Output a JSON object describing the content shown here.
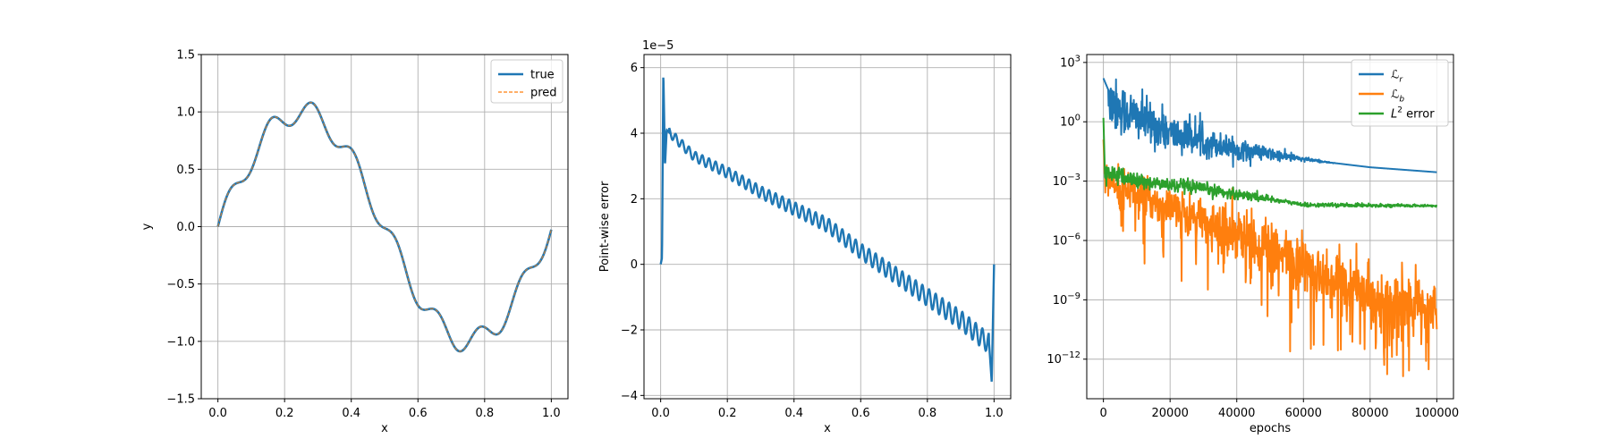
{
  "chart_data": [
    {
      "type": "line",
      "title": "",
      "xlabel": "x",
      "ylabel": "y",
      "xlim": [
        -0.05,
        1.05
      ],
      "ylim": [
        -1.5,
        1.5
      ],
      "xticks": [
        0.0,
        0.2,
        0.4,
        0.6,
        0.8,
        1.0
      ],
      "xtick_labels": [
        "0.0",
        "0.2",
        "0.4",
        "0.6",
        "0.8",
        "1.0"
      ],
      "yticks": [
        -1.5,
        -1.0,
        -0.5,
        0.0,
        0.5,
        1.0,
        1.5
      ],
      "ytick_labels": [
        "−1.5",
        "−1.0",
        "−0.5",
        "0.0",
        "0.5",
        "1.0",
        "1.5"
      ],
      "grid": true,
      "legend_position": "top-right",
      "series": [
        {
          "name": "true",
          "color": "#1f77b4",
          "style": "solid",
          "function": "sin(2*pi*x) + 0.1*sin(50*x)",
          "x_range": [
            0,
            1
          ]
        },
        {
          "name": "pred",
          "color": "#ff7f0e",
          "style": "dashed",
          "function": "sin(2*pi*x) + 0.1*sin(50*x)",
          "x_range": [
            0,
            1
          ]
        }
      ]
    },
    {
      "type": "line",
      "title": "",
      "xlabel": "x",
      "ylabel": "Point-wise error",
      "offset_text": "1e−5",
      "xlim": [
        -0.05,
        1.05
      ],
      "ylim": [
        -4.1,
        6.4
      ],
      "xticks": [
        0.0,
        0.2,
        0.4,
        0.6,
        0.8,
        1.0
      ],
      "xtick_labels": [
        "0.0",
        "0.2",
        "0.4",
        "0.6",
        "0.8",
        "1.0"
      ],
      "yticks": [
        -4,
        -2,
        0,
        2,
        4,
        6
      ],
      "ytick_labels": [
        "−4",
        "−2",
        "0",
        "2",
        "4",
        "6"
      ],
      "grid": true,
      "series": [
        {
          "name": "error",
          "color": "#1f77b4",
          "points": [
            [
              0.0,
              0.0
            ],
            [
              0.004,
              0.2
            ],
            [
              0.008,
              5.9
            ],
            [
              0.013,
              3.0
            ],
            [
              0.018,
              4.1
            ],
            [
              0.1,
              3.3
            ],
            [
              0.2,
              2.8
            ],
            [
              0.3,
              2.2
            ],
            [
              0.4,
              1.7
            ],
            [
              0.5,
              1.2
            ],
            [
              0.6,
              0.4
            ],
            [
              0.7,
              -0.3
            ],
            [
              0.8,
              -1.0
            ],
            [
              0.9,
              -1.7
            ],
            [
              0.97,
              -2.3
            ],
            [
              0.985,
              -2.4
            ],
            [
              0.993,
              -3.6
            ],
            [
              1.0,
              0.0
            ]
          ],
          "oscillation_amplitude": 0.22,
          "oscillation_frequency": 50
        }
      ]
    },
    {
      "type": "line",
      "title": "",
      "xlabel": "epochs",
      "ylabel": "",
      "yscale": "log",
      "xlim": [
        -5000,
        105000
      ],
      "ylim_exponent": [
        -14.0,
        3.4
      ],
      "xticks": [
        0,
        20000,
        40000,
        60000,
        80000,
        100000
      ],
      "xtick_labels": [
        "0",
        "20000",
        "40000",
        "60000",
        "80000",
        "100000"
      ],
      "yticks_exponent": [
        -12,
        -9,
        -6,
        -3,
        0,
        3
      ],
      "ytick_base": "10",
      "ytick_exponent_labels": [
        "−12",
        "−9",
        "−6",
        "−3",
        "0",
        "3"
      ],
      "grid": true,
      "legend_position": "top-right",
      "series": [
        {
          "name": "ℒ",
          "name_subscript": "r",
          "color": "#1f77b4",
          "log10_trend": [
            [
              0,
              1.1
            ],
            [
              20000,
              -0.6
            ],
            [
              40000,
              -1.4
            ],
            [
              60000,
              -1.9
            ],
            [
              80000,
              -2.3
            ],
            [
              100000,
              -2.55
            ]
          ],
          "log10_noise": [
            [
              0,
              1.6
            ],
            [
              30000,
              0.8
            ],
            [
              60000,
              0.15
            ],
            [
              70000,
              0.0
            ]
          ]
        },
        {
          "name": "ℒ",
          "name_subscript": "b",
          "color": "#ff7f0e",
          "log10_trend": [
            [
              0,
              -2.8
            ],
            [
              20000,
              -4.4
            ],
            [
              40000,
              -5.6
            ],
            [
              60000,
              -7.3
            ],
            [
              80000,
              -8.8
            ],
            [
              100000,
              -9.6
            ]
          ],
          "log10_noise": [
            [
              0,
              0.9
            ],
            [
              50000,
              1.5
            ],
            [
              100000,
              1.6
            ]
          ]
        },
        {
          "name": "L",
          "name_superscript": "2",
          "name_suffix": " error",
          "color": "#2ca02c",
          "log10_trend": [
            [
              0,
              -2.5
            ],
            [
              10000,
              -3.0
            ],
            [
              30000,
              -3.4
            ],
            [
              50000,
              -3.9
            ],
            [
              60000,
              -4.2
            ],
            [
              100000,
              -4.25
            ]
          ],
          "log10_noise": [
            [
              0,
              0.5
            ],
            [
              40000,
              0.3
            ],
            [
              55000,
              0.12
            ],
            [
              100000,
              0.06
            ]
          ]
        }
      ]
    }
  ]
}
